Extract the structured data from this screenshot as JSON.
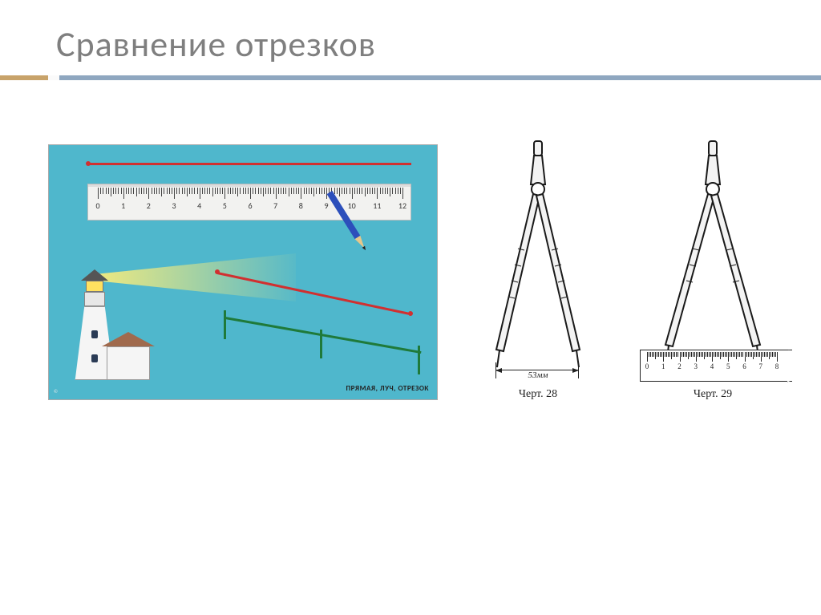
{
  "title": "Сравнение отрезков",
  "left": {
    "ruler": {
      "start": 0,
      "end": 12,
      "numbers": [
        0,
        1,
        2,
        3,
        4,
        5,
        6,
        7,
        8,
        9,
        10,
        11,
        12
      ]
    },
    "caption": "ПРЯМАЯ, ЛУЧ, ОТРЕЗОК",
    "colors": {
      "background": "#4fb7cc",
      "line_red": "#d13030",
      "line_green": "#1f7a3a",
      "pencil_body": "#2c4fbb",
      "beam": "#ffee78"
    }
  },
  "right": {
    "fig28": {
      "label": "Черт. 28",
      "dimension": "53мм"
    },
    "fig29": {
      "label": "Черт. 29",
      "ruler_numbers": [
        0,
        1,
        2,
        3,
        4,
        5,
        6,
        7,
        8
      ]
    }
  }
}
